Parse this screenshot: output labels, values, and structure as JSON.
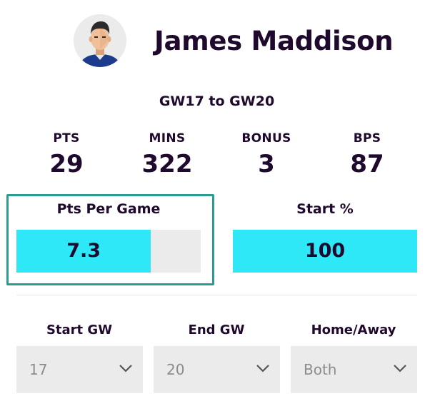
{
  "player": {
    "name": "James Maddison"
  },
  "range_label": "GW17 to GW20",
  "stats": [
    {
      "label": "PTS",
      "value": "29"
    },
    {
      "label": "MINS",
      "value": "322"
    },
    {
      "label": "BONUS",
      "value": "3"
    },
    {
      "label": "BPS",
      "value": "87"
    }
  ],
  "bars": {
    "ppg": {
      "title": "Pts Per Game",
      "value_text": "7.3",
      "fill_fraction": 0.73
    },
    "start": {
      "title": "Start %",
      "value_text": "100",
      "fill_fraction": 1.0
    }
  },
  "filters": [
    {
      "label": "Start GW",
      "value": "17",
      "icon": "chevron-down-icon"
    },
    {
      "label": "End GW",
      "value": "20",
      "icon": "chevron-down-icon"
    },
    {
      "label": "Home/Away",
      "value": "Both",
      "icon": "chevron-down-icon"
    }
  ],
  "colors": {
    "bar_fill": "#2ee8f8",
    "bar_track": "#ebebeb",
    "highlight_border": "#2a9d8f",
    "text_dark": "#1f0a2e"
  }
}
